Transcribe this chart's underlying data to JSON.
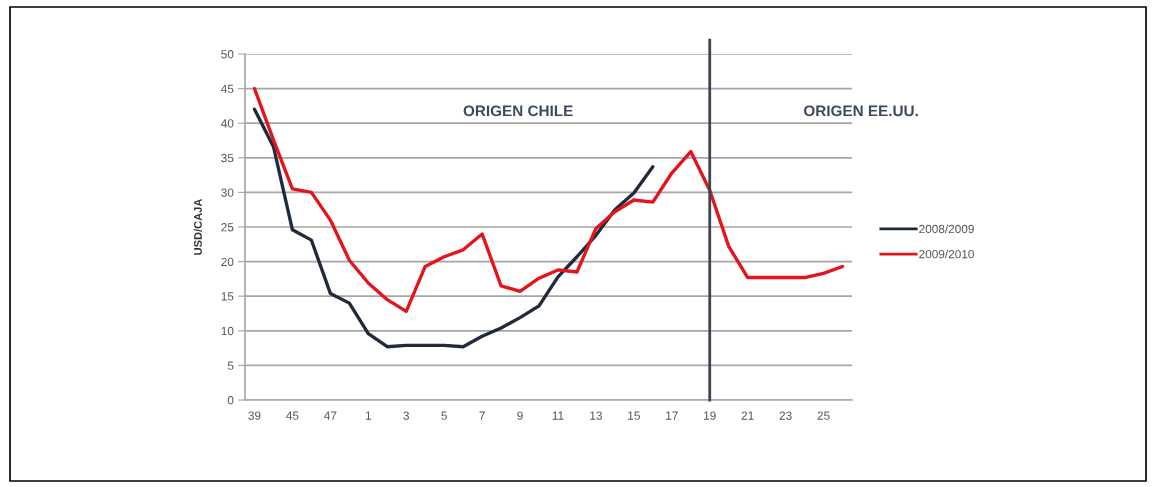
{
  "chart_data": {
    "type": "line",
    "ylabel": "USD/CAJA",
    "categories": [
      "39",
      null,
      "45",
      null,
      "47",
      null,
      "1",
      null,
      "3",
      null,
      "5",
      null,
      "7",
      null,
      "9",
      null,
      "11",
      null,
      "13",
      null,
      "15",
      null,
      "17",
      null,
      "19",
      null,
      "21",
      null,
      "23",
      null,
      "25",
      null
    ],
    "series": [
      {
        "name": "2008/2009",
        "color": "#1f2a3c",
        "values": [
          42,
          36.6,
          24.6,
          23.1,
          15.4,
          14,
          9.6,
          7.7,
          7.9,
          7.9,
          7.9,
          7.7,
          9.2,
          10.4,
          11.9,
          13.6,
          17.8,
          20.7,
          23.8,
          27.5,
          29.9,
          33.7,
          null,
          null,
          null,
          null,
          null,
          null,
          null,
          null,
          null,
          null
        ]
      },
      {
        "name": "2009/2010",
        "color": "#e3141b",
        "values": [
          45,
          37.6,
          30.5,
          30,
          26,
          20.2,
          16.9,
          14.5,
          12.8,
          19.3,
          20.7,
          21.7,
          24,
          16.5,
          15.7,
          17.6,
          18.8,
          18.5,
          24.8,
          27.2,
          28.9,
          28.6,
          32.8,
          35.9,
          30.3,
          22.2,
          17.7,
          17.7,
          17.7,
          17.7,
          18.3,
          19.3
        ]
      }
    ],
    "ylim": [
      0,
      50
    ],
    "yticks": [
      0,
      5,
      10,
      15,
      20,
      25,
      30,
      35,
      40,
      45,
      50
    ],
    "grid": "y",
    "legend": "right",
    "marker": "none",
    "line_style": "solid",
    "ref_lines": [
      {
        "axis": "x",
        "value": "19",
        "color": "#3a4452"
      }
    ],
    "annotations": [
      "ORIGEN CHILE",
      "ORIGEN EE.UU."
    ]
  }
}
